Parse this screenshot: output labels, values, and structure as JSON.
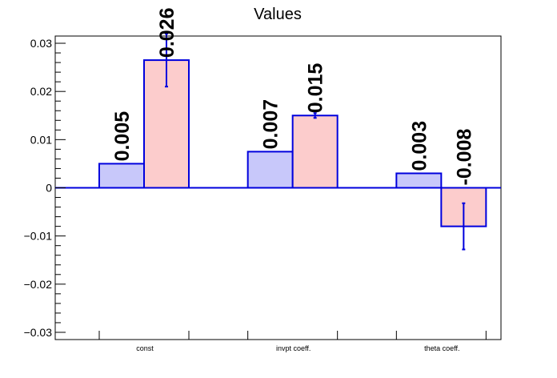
{
  "chart_data": {
    "type": "bar",
    "title": "Values",
    "xlabel": "",
    "ylabel": "",
    "categories": [
      "const",
      "invpt coeff.",
      "theta coeff."
    ],
    "ylim": [
      -0.0315,
      0.0315
    ],
    "yticks": [
      -0.03,
      -0.02,
      -0.01,
      0,
      0.01,
      0.02,
      0.03
    ],
    "ytick_labels": [
      "−0.03",
      "−0.02",
      "−0.01",
      "0",
      "0.01",
      "0.02",
      "0.03"
    ],
    "grid": false,
    "legend": "none",
    "series": [
      {
        "values": [
          0.005,
          0.0075,
          0.003
        ],
        "labels": [
          "0.005",
          "0.007",
          "0.003"
        ],
        "errors": [
          0,
          0,
          0
        ],
        "fill_color": "#c8c8fa",
        "edge_color": "#0000dd"
      },
      {
        "values": [
          0.0265,
          0.015,
          -0.008
        ],
        "labels": [
          "0.026",
          "0.015",
          "-0.008"
        ],
        "errors": [
          0.0055,
          0.0005,
          0.0048
        ],
        "fill_color": "#fccccc",
        "edge_color": "#0000dd"
      }
    ]
  }
}
